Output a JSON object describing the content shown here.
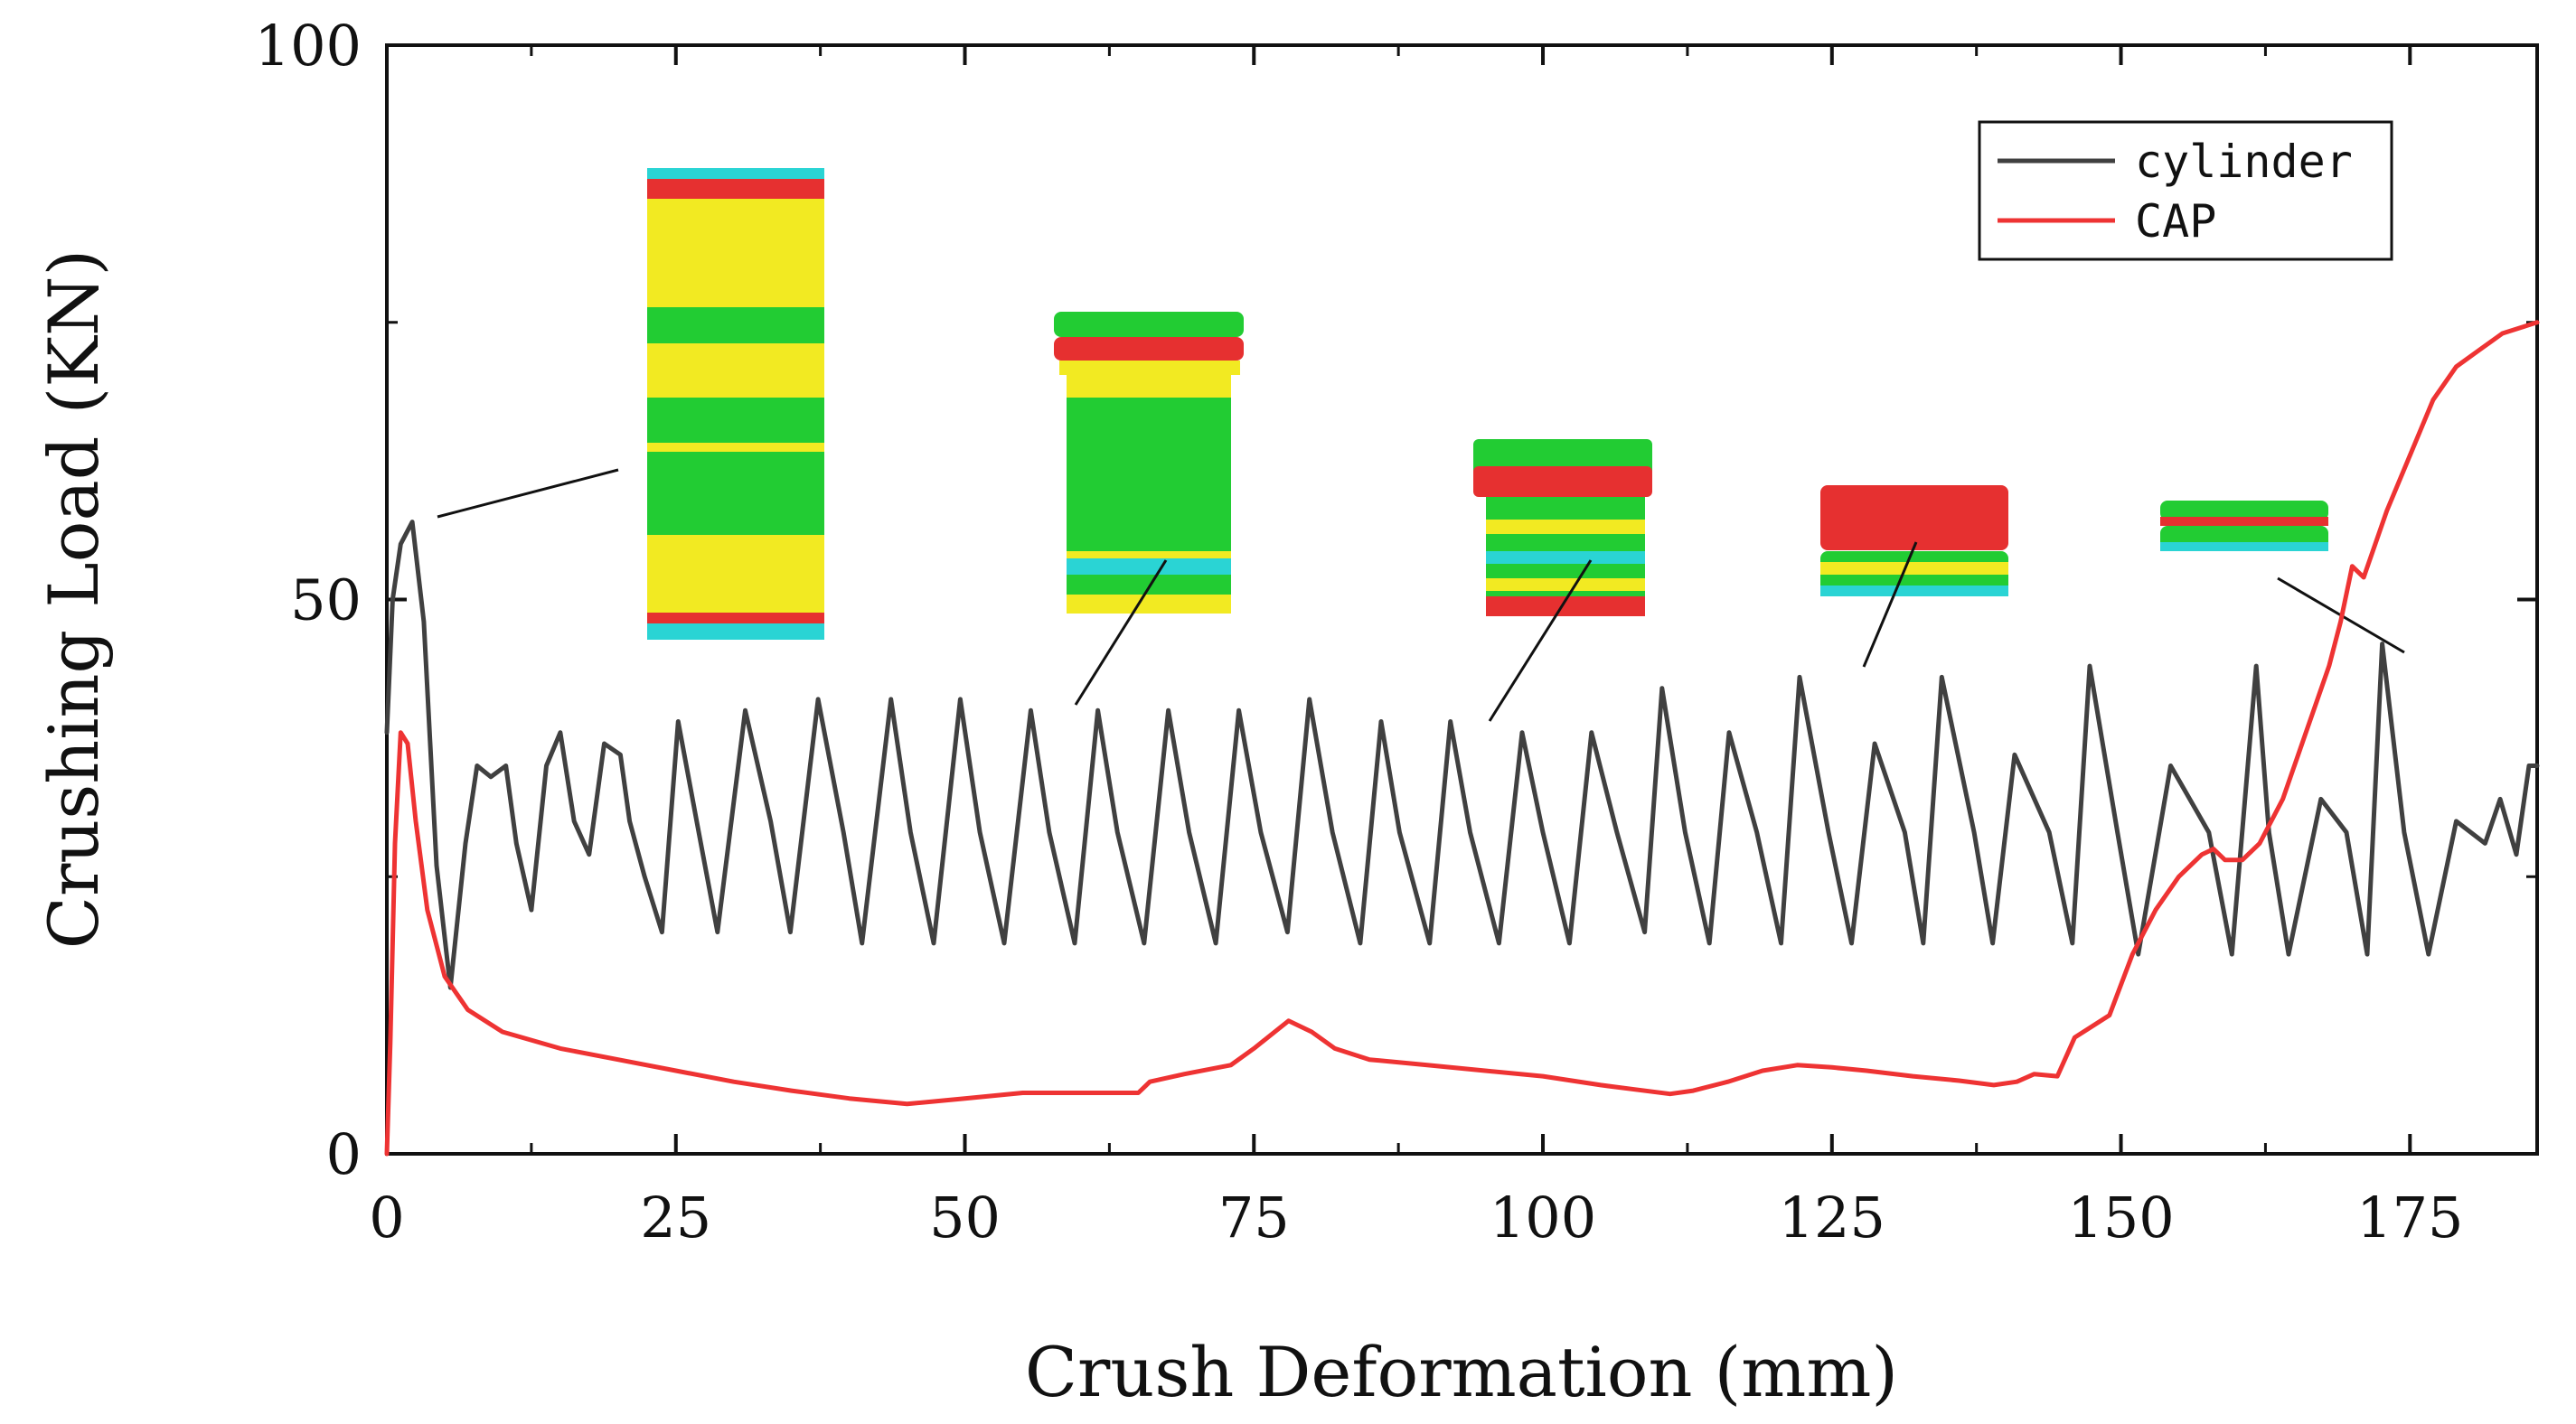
{
  "chart_data": {
    "type": "line",
    "xlabel": "Crush Deformation (mm)",
    "ylabel": "Crushing Load (KN)",
    "xlim": [
      0,
      186
    ],
    "ylim": [
      0,
      100
    ],
    "xticks": [
      0,
      25,
      50,
      75,
      100,
      125,
      150,
      175
    ],
    "yticks": [
      0,
      50,
      100
    ],
    "grid": false,
    "legend_position": "top-right",
    "series": [
      {
        "name": "cylinder",
        "color": "#404040",
        "x": [
          0,
          0.5,
          1.2,
          2.2,
          3.2,
          4.3,
          5.5,
          6.8,
          7.8,
          9.0,
          10.3,
          11.2,
          12.5,
          13.8,
          15.0,
          16.2,
          17.5,
          18.8,
          20.2,
          21.0,
          22.3,
          23.8,
          25.2,
          26.8,
          28.6,
          31.0,
          33.2,
          34.9,
          37.3,
          39.5,
          41.1,
          43.6,
          45.3,
          47.3,
          49.6,
          51.3,
          53.4,
          55.7,
          57.3,
          59.5,
          61.5,
          63.2,
          65.5,
          67.6,
          69.4,
          71.7,
          73.7,
          75.6,
          77.9,
          79.8,
          81.8,
          84.2,
          86.0,
          87.6,
          90.2,
          92.0,
          93.7,
          96.2,
          98.2,
          100.0,
          102.3,
          104.2,
          106.4,
          108.8,
          110.3,
          112.3,
          114.4,
          116.1,
          118.5,
          120.6,
          122.2,
          124.7,
          126.7,
          128.7,
          131.3,
          132.9,
          134.5,
          137.3,
          138.9,
          140.8,
          143.8,
          145.8,
          147.3,
          149.7,
          151.5,
          154.3,
          157.6,
          159.6,
          161.7,
          162.8,
          164.5,
          167.3,
          169.5,
          171.3,
          172.6,
          174.5,
          176.6,
          179.0,
          181.5,
          182.8,
          184.2,
          185.3,
          186
        ],
        "y": [
          38,
          50,
          55,
          57,
          48,
          26,
          15,
          28,
          35,
          34,
          35,
          28,
          22,
          35,
          38,
          30,
          27,
          37,
          36,
          30,
          25,
          20,
          39,
          30,
          20,
          40,
          30,
          20,
          41,
          29,
          19,
          41,
          29,
          19,
          41,
          29,
          19,
          40,
          29,
          19,
          40,
          29,
          19,
          40,
          29,
          19,
          40,
          29,
          20,
          41,
          29,
          19,
          39,
          29,
          19,
          39,
          29,
          19,
          38,
          29,
          19,
          38,
          29,
          20,
          42,
          29,
          19,
          38,
          29,
          19,
          43,
          29,
          19,
          37,
          29,
          19,
          43,
          29,
          19,
          36,
          29,
          19,
          44,
          29,
          18,
          35,
          29,
          18,
          44,
          29,
          18,
          32,
          29,
          18,
          46,
          29,
          18,
          30,
          28,
          32,
          27,
          35,
          35
        ]
      },
      {
        "name": "CAP",
        "color": "#ee3333",
        "x": [
          0,
          0.3,
          0.7,
          1.2,
          1.8,
          2.5,
          3.5,
          5.0,
          7.0,
          10,
          15,
          20,
          25,
          30,
          35,
          40,
          45,
          50,
          55,
          60,
          65,
          66,
          69,
          73,
          75,
          78,
          80,
          82,
          85,
          90,
          95,
          100,
          105,
          108,
          111,
          113,
          116,
          119,
          122,
          125,
          128,
          132,
          136,
          139,
          141,
          142.5,
          144.5,
          146,
          149,
          151,
          153,
          155,
          157,
          158,
          159,
          160.5,
          162,
          164,
          166,
          168,
          169,
          170,
          171,
          173,
          175,
          177,
          179,
          181,
          183,
          186
        ],
        "y": [
          0,
          10,
          28,
          38,
          37,
          30,
          22,
          16,
          13,
          11,
          9.5,
          8.5,
          7.5,
          6.5,
          5.7,
          5,
          4.5,
          5,
          5.5,
          5.5,
          5.5,
          6.5,
          7.2,
          8,
          9.5,
          12,
          11,
          9.5,
          8.5,
          8,
          7.5,
          7,
          6.2,
          5.8,
          5.4,
          5.7,
          6.5,
          7.5,
          8,
          7.8,
          7.5,
          7,
          6.6,
          6.2,
          6.5,
          7.2,
          7,
          10.5,
          12.5,
          18,
          22,
          25,
          27,
          27.5,
          26.5,
          26.5,
          28,
          32,
          38,
          44,
          48,
          53,
          52,
          58,
          63,
          68,
          71,
          72.5,
          74,
          75
        ]
      }
    ]
  }
}
